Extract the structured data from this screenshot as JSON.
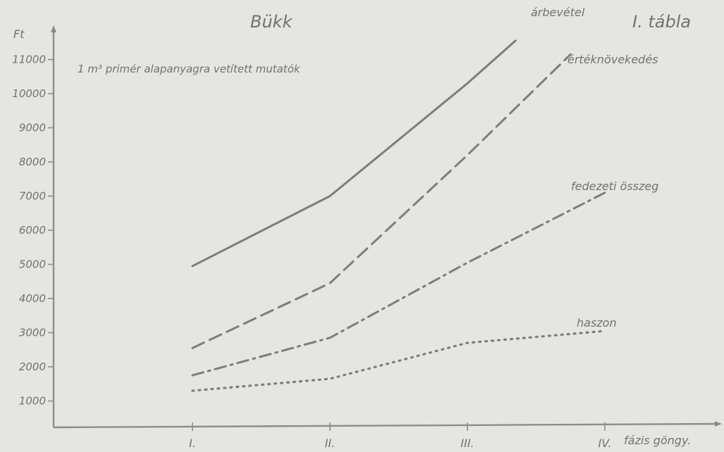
{
  "chart_data": {
    "type": "line",
    "title": "Bükk",
    "subtitle": "1 m³ primér alapanyagra vetített mutatók",
    "plate_label": "I. tábla",
    "ylabel": "Ft",
    "xlabel": "fázis göngy.",
    "categories": [
      "I.",
      "II.",
      "III.",
      "IV."
    ],
    "y_ticks": [
      {
        "value": 1000,
        "label": "1000"
      },
      {
        "value": 2000,
        "label": "2000"
      },
      {
        "value": 3000,
        "label": "3000"
      },
      {
        "value": 4000,
        "label": "4000"
      },
      {
        "value": 5000,
        "label": "5000"
      },
      {
        "value": 6000,
        "label": "6000"
      },
      {
        "value": 7000,
        "label": "7000"
      },
      {
        "value": 8000,
        "label": "8000"
      },
      {
        "value": 9000,
        "label": "9000"
      },
      {
        "value": 10000,
        "label": "10000"
      },
      {
        "value": 11000,
        "label": "11000"
      }
    ],
    "ylim": [
      0,
      12000
    ],
    "grid": false,
    "series": [
      {
        "name": "árbevétel",
        "style": "solid",
        "color": "#7b7e7a",
        "points": [
          {
            "x": 1,
            "y": 4950
          },
          {
            "x": 2,
            "y": 7000
          },
          {
            "x": 3,
            "y": 10300
          },
          {
            "x": 3.35,
            "y": 11550
          }
        ]
      },
      {
        "name": "értéknövekedés",
        "style": "dashed",
        "color": "#7b7e7a",
        "points": [
          {
            "x": 1,
            "y": 2550
          },
          {
            "x": 2,
            "y": 4450
          },
          {
            "x": 3,
            "y": 8200
          },
          {
            "x": 3.75,
            "y": 11150
          }
        ]
      },
      {
        "name": "fedezeti összeg",
        "style": "dashdot",
        "color": "#7b7e7a",
        "points": [
          {
            "x": 1,
            "y": 1750
          },
          {
            "x": 2,
            "y": 2850
          },
          {
            "x": 3,
            "y": 5050
          },
          {
            "x": 4,
            "y": 7100
          }
        ]
      },
      {
        "name": "haszon",
        "style": "dotted",
        "color": "#7b7e7a",
        "points": [
          {
            "x": 1,
            "y": 1300
          },
          {
            "x": 2,
            "y": 1650
          },
          {
            "x": 3,
            "y": 2700
          },
          {
            "x": 4,
            "y": 3050
          }
        ]
      }
    ]
  }
}
